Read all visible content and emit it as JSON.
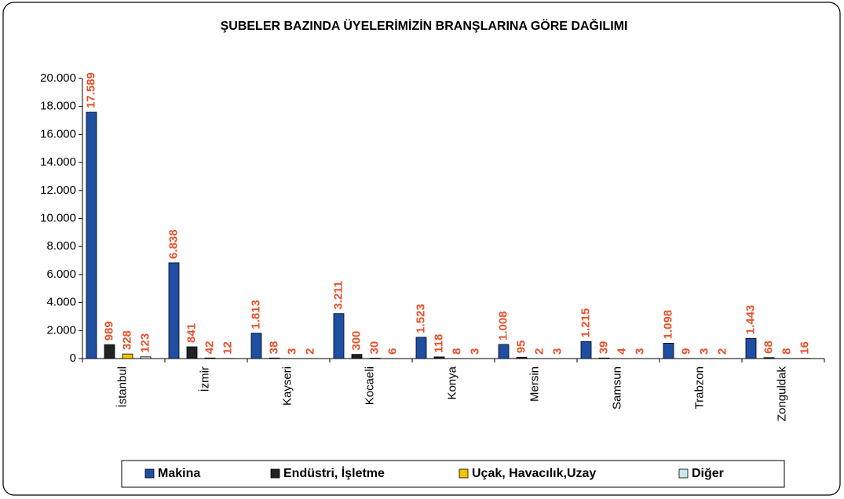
{
  "chart_data": {
    "type": "bar",
    "title": "ŞUBELER BAZINDA ÜYELERİMİZİN BRANŞLARINA GÖRE DAĞILIMI",
    "categories": [
      "İstanbul",
      "İzmir",
      "Kayseri",
      "Kocaeli",
      "Konya",
      "Mersin",
      "Samsun",
      "Trabzon",
      "Zonguldak"
    ],
    "series": [
      {
        "name": "Makina",
        "color": "#1f4fa3",
        "values": [
          17589,
          6838,
          1813,
          3211,
          1523,
          1008,
          1215,
          1098,
          1443
        ],
        "value_labels": [
          "17.589",
          "6.838",
          "1.813",
          "3.211",
          "1.523",
          "1.008",
          "1.215",
          "1.098",
          "1.443"
        ]
      },
      {
        "name": "Endüstri, İşletme",
        "color": "#222222",
        "values": [
          989,
          841,
          38,
          300,
          118,
          95,
          39,
          9,
          68
        ]
      },
      {
        "name": "Uçak, Havacılık,Uzay",
        "color": "#f5c400",
        "values": [
          328,
          42,
          3,
          30,
          8,
          2,
          4,
          3,
          8
        ]
      },
      {
        "name": "Diğer",
        "color": "#c9e8e8",
        "values": [
          123,
          12,
          2,
          6,
          3,
          3,
          3,
          2,
          16
        ]
      }
    ],
    "ylim": [
      0,
      20000
    ],
    "yticks": [
      0,
      {
        "value": 2000,
        "label": "2.000"
      },
      {
        "value": 4000,
        "label": "4.000"
      },
      {
        "value": 6000,
        "label": "6.000"
      },
      {
        "value": 8000,
        "label": "8.000"
      },
      {
        "value": 10000,
        "label": "10.000"
      },
      {
        "value": 12000,
        "label": "12.000"
      },
      {
        "value": 14000,
        "label": "14.000"
      },
      {
        "value": 16000,
        "label": "16.000"
      },
      {
        "value": 18000,
        "label": "18.000"
      },
      {
        "value": 20000,
        "label": "20.000"
      }
    ],
    "legend": "bottom"
  }
}
